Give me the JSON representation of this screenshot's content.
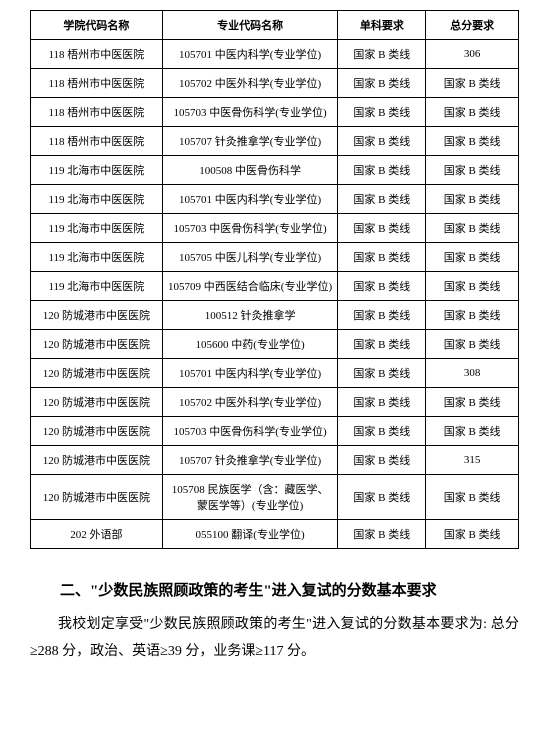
{
  "table": {
    "headers": [
      "学院代码名称",
      "专业代码名称",
      "单科要求",
      "总分要求"
    ],
    "rows": [
      [
        "118 梧州市中医医院",
        "105701 中医内科学(专业学位)",
        "国家 B 类线",
        "306"
      ],
      [
        "118 梧州市中医医院",
        "105702 中医外科学(专业学位)",
        "国家 B 类线",
        "国家 B 类线"
      ],
      [
        "118 梧州市中医医院",
        "105703 中医骨伤科学(专业学位)",
        "国家 B 类线",
        "国家 B 类线"
      ],
      [
        "118 梧州市中医医院",
        "105707 针灸推拿学(专业学位)",
        "国家 B 类线",
        "国家 B 类线"
      ],
      [
        "119 北海市中医医院",
        "100508 中医骨伤科学",
        "国家 B 类线",
        "国家 B 类线"
      ],
      [
        "119 北海市中医医院",
        "105701 中医内科学(专业学位)",
        "国家 B 类线",
        "国家 B 类线"
      ],
      [
        "119 北海市中医医院",
        "105703 中医骨伤科学(专业学位)",
        "国家 B 类线",
        "国家 B 类线"
      ],
      [
        "119 北海市中医医院",
        "105705 中医儿科学(专业学位)",
        "国家 B 类线",
        "国家 B 类线"
      ],
      [
        "119 北海市中医医院",
        "105709 中西医结合临床(专业学位)",
        "国家 B 类线",
        "国家 B 类线"
      ],
      [
        "120 防城港市中医医院",
        "100512 针灸推拿学",
        "国家 B 类线",
        "国家 B 类线"
      ],
      [
        "120 防城港市中医医院",
        "105600 中药(专业学位)",
        "国家 B 类线",
        "国家 B 类线"
      ],
      [
        "120 防城港市中医医院",
        "105701 中医内科学(专业学位)",
        "国家 B 类线",
        "308"
      ],
      [
        "120 防城港市中医医院",
        "105702 中医外科学(专业学位)",
        "国家 B 类线",
        "国家 B 类线"
      ],
      [
        "120 防城港市中医医院",
        "105703 中医骨伤科学(专业学位)",
        "国家 B 类线",
        "国家 B 类线"
      ],
      [
        "120 防城港市中医医院",
        "105707 针灸推拿学(专业学位)",
        "国家 B 类线",
        "315"
      ],
      [
        "120 防城港市中医医院",
        "105708 民族医学（含：藏医学、蒙医学等）(专业学位)",
        "国家 B 类线",
        "国家 B 类线"
      ],
      [
        "202 外语部",
        "055100 翻译(专业学位)",
        "国家 B 类线",
        "国家 B 类线"
      ]
    ]
  },
  "section": {
    "title": "二、\"少数民族照顾政策的考生\"进入复试的分数基本要求",
    "text": "我校划定享受\"少数民族照顾政策的考生\"进入复试的分数基本要求为: 总分≥288 分，政治、英语≥39 分，业务课≥117 分。"
  }
}
